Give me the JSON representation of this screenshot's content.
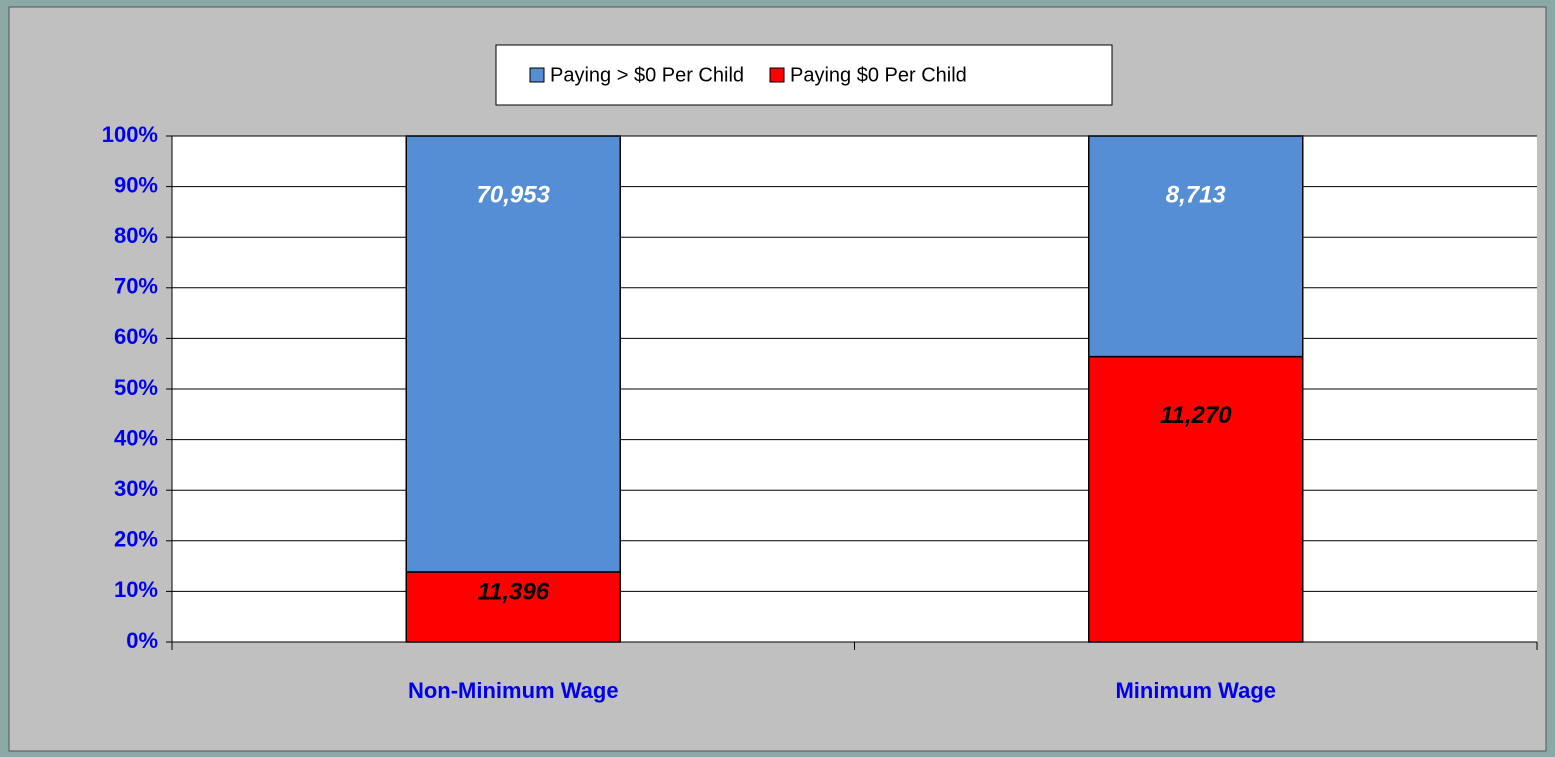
{
  "chart_data": {
    "type": "stacked_bar",
    "categories": [
      "Non-Minimum Wage",
      "Minimum Wage"
    ],
    "series": [
      {
        "name": "Paying $0 Per Child",
        "color": "#ff0000",
        "label_color": "#000000",
        "values": [
          13.84,
          56.4
        ],
        "data_labels": [
          "11,396",
          "11,270"
        ]
      },
      {
        "name": "Paying > $0 Per Child",
        "color": "#558ed5",
        "label_color": "#ffffff",
        "values": [
          86.16,
          43.6
        ],
        "data_labels": [
          "70,953",
          "8,713"
        ]
      }
    ],
    "legend_order": [
      1,
      0
    ],
    "ylim": [
      0,
      100
    ],
    "yticks": [
      {
        "value": 0,
        "label": "0%"
      },
      {
        "value": 10,
        "label": "10%"
      },
      {
        "value": 20,
        "label": "20%"
      },
      {
        "value": 30,
        "label": "30%"
      },
      {
        "value": 40,
        "label": "40%"
      },
      {
        "value": 50,
        "label": "50%"
      },
      {
        "value": 60,
        "label": "60%"
      },
      {
        "value": 70,
        "label": "70%"
      },
      {
        "value": 80,
        "label": "80%"
      },
      {
        "value": 90,
        "label": "90%"
      },
      {
        "value": 100,
        "label": "100%"
      }
    ],
    "grid": true
  }
}
